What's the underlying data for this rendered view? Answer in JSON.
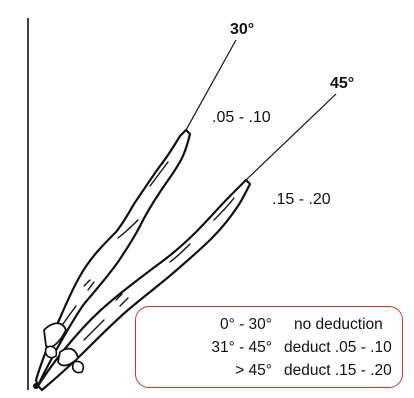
{
  "figure": {
    "angle_labels": [
      {
        "text": "30°",
        "band": ".05 - .10"
      },
      {
        "text": "45°",
        "band": ".15 - .20"
      }
    ],
    "legend": {
      "rows": [
        {
          "range": "0° - 30°",
          "deduction": "no deduction"
        },
        {
          "range": "31° - 45°",
          "deduction": "deduct .05 - .10"
        },
        {
          "range": "> 45°",
          "deduction": "deduct .15 - .20"
        }
      ],
      "border_color": "#d6342b"
    },
    "line_color": "#111111"
  }
}
